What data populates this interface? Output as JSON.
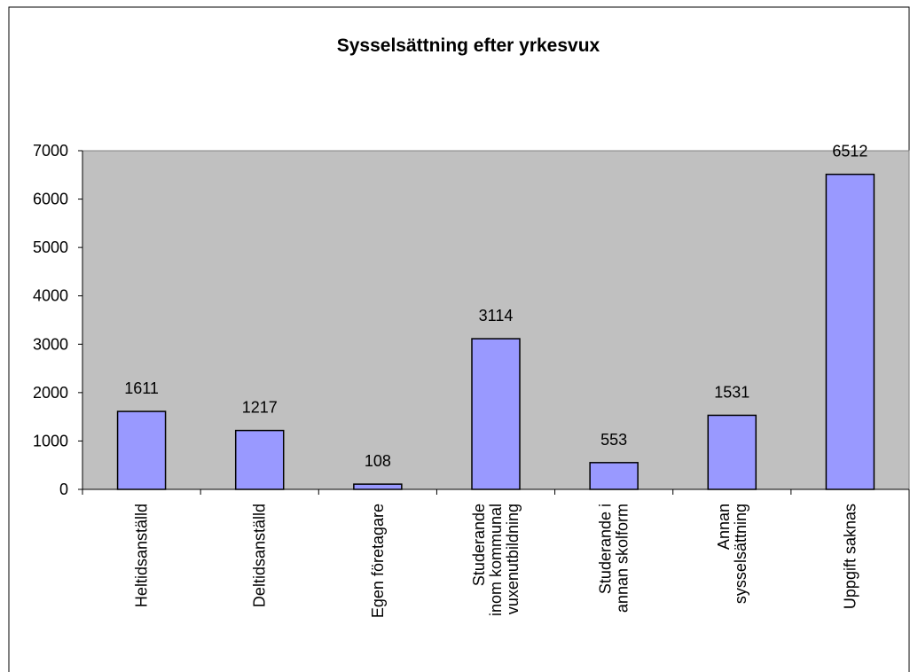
{
  "chart_data": {
    "type": "bar",
    "title": "Sysselsättning efter yrkesvux",
    "categories": [
      "Heltidsanställd",
      "Deltidsanställd",
      "Egen företagare",
      "Studerande\ninom kommunal\nvuxenutbildning",
      "Studerande i\nannan skolform",
      "Annan\nsysselsättning",
      "Uppgift saknas"
    ],
    "values": [
      1611,
      1217,
      108,
      3114,
      553,
      1531,
      6512
    ],
    "color": "#9999ff",
    "ylim": [
      0,
      7000
    ],
    "yticks": [
      0,
      1000,
      2000,
      3000,
      4000,
      5000,
      6000,
      7000
    ],
    "grid": false
  }
}
